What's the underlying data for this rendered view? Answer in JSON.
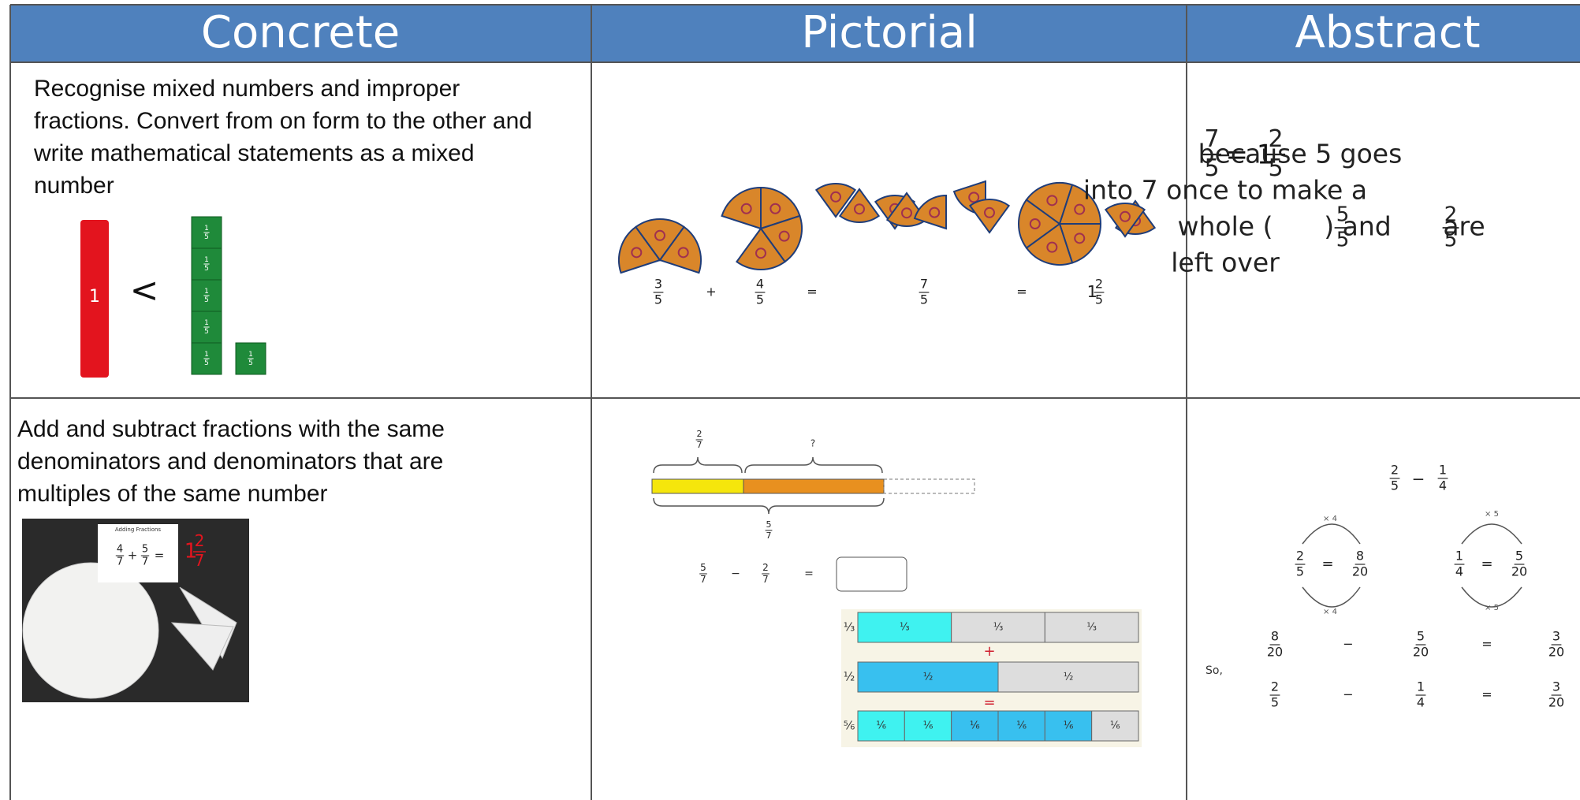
{
  "header": {
    "columns": [
      "Concrete",
      "Pictorial",
      "Abstract"
    ]
  },
  "rows": [
    {
      "concrete": {
        "text": "Recognise mixed numbers and improper fractions. Convert from on form to the other and write mathematical statements as a mixed number",
        "rod_label": "1",
        "symbol": "<",
        "cube_label": {
          "n": "1",
          "d": "5"
        }
      },
      "pictorial": {
        "f1": {
          "n": "3",
          "d": "5"
        },
        "plus": "+",
        "f2": {
          "n": "4",
          "d": "5"
        },
        "eq1": "=",
        "f3": {
          "n": "7",
          "d": "5"
        },
        "eq2": "=",
        "mixed": {
          "w": "1",
          "n": "2",
          "d": "5"
        }
      },
      "abstract": {
        "lhs": {
          "n": "7",
          "d": "5"
        },
        "eq": "= 1",
        "mixed": {
          "n": "2",
          "d": "5"
        },
        "line1": "because 5 goes",
        "line2": "into 7 once to make a",
        "line3a": "whole (",
        "whole_frac": {
          "n": "5",
          "d": "5"
        },
        "line3b": ") and",
        "left_frac": {
          "n": "2",
          "d": "5"
        },
        "line3c": "are",
        "line4": "left over"
      }
    },
    {
      "concrete": {
        "text": "Add and subtract fractions with the same denominators and denominators that are multiples of the same number",
        "card_title": "Adding Fractions",
        "a": {
          "n": "4",
          "d": "7"
        },
        "plus": "+",
        "b": {
          "n": "5",
          "d": "7"
        },
        "eq": "=",
        "answer": {
          "w": "1",
          "n": "2",
          "d": "7"
        }
      },
      "pictorial": {
        "top_left": {
          "n": "2",
          "d": "7"
        },
        "top_right": "?",
        "bottom": {
          "n": "5",
          "d": "7"
        },
        "eq_a": {
          "n": "5",
          "d": "7"
        },
        "minus": "−",
        "eq_b": {
          "n": "2",
          "d": "7"
        },
        "eq": "=",
        "strip_labels": [
          "⅓",
          "½",
          "⅚"
        ],
        "strip1": [
          "⅓",
          "⅓",
          "⅓"
        ],
        "strip2": [
          "½",
          "½"
        ],
        "strip3": [
          "⅙",
          "⅙",
          "⅙",
          "⅙",
          "⅙",
          "⅙"
        ],
        "plus": "+",
        "equals": "="
      },
      "abstract": {
        "q_a": {
          "n": "2",
          "d": "5"
        },
        "minus": "−",
        "q_b": {
          "n": "1",
          "d": "4"
        },
        "l_a": {
          "n": "2",
          "d": "5"
        },
        "l_eq": "=",
        "l_b": {
          "n": "8",
          "d": "20"
        },
        "times4": "× 4",
        "r_a": {
          "n": "1",
          "d": "4"
        },
        "r_eq": "=",
        "r_b": {
          "n": "5",
          "d": "20"
        },
        "times5": "× 5",
        "so": "So,",
        "s1": [
          {
            "n": "8",
            "d": "20"
          },
          "−",
          {
            "n": "5",
            "d": "20"
          },
          "=",
          {
            "n": "3",
            "d": "20"
          }
        ],
        "s2": [
          {
            "n": "2",
            "d": "5"
          },
          "−",
          {
            "n": "1",
            "d": "4"
          },
          "=",
          {
            "n": "3",
            "d": "20"
          }
        ]
      }
    }
  ]
}
